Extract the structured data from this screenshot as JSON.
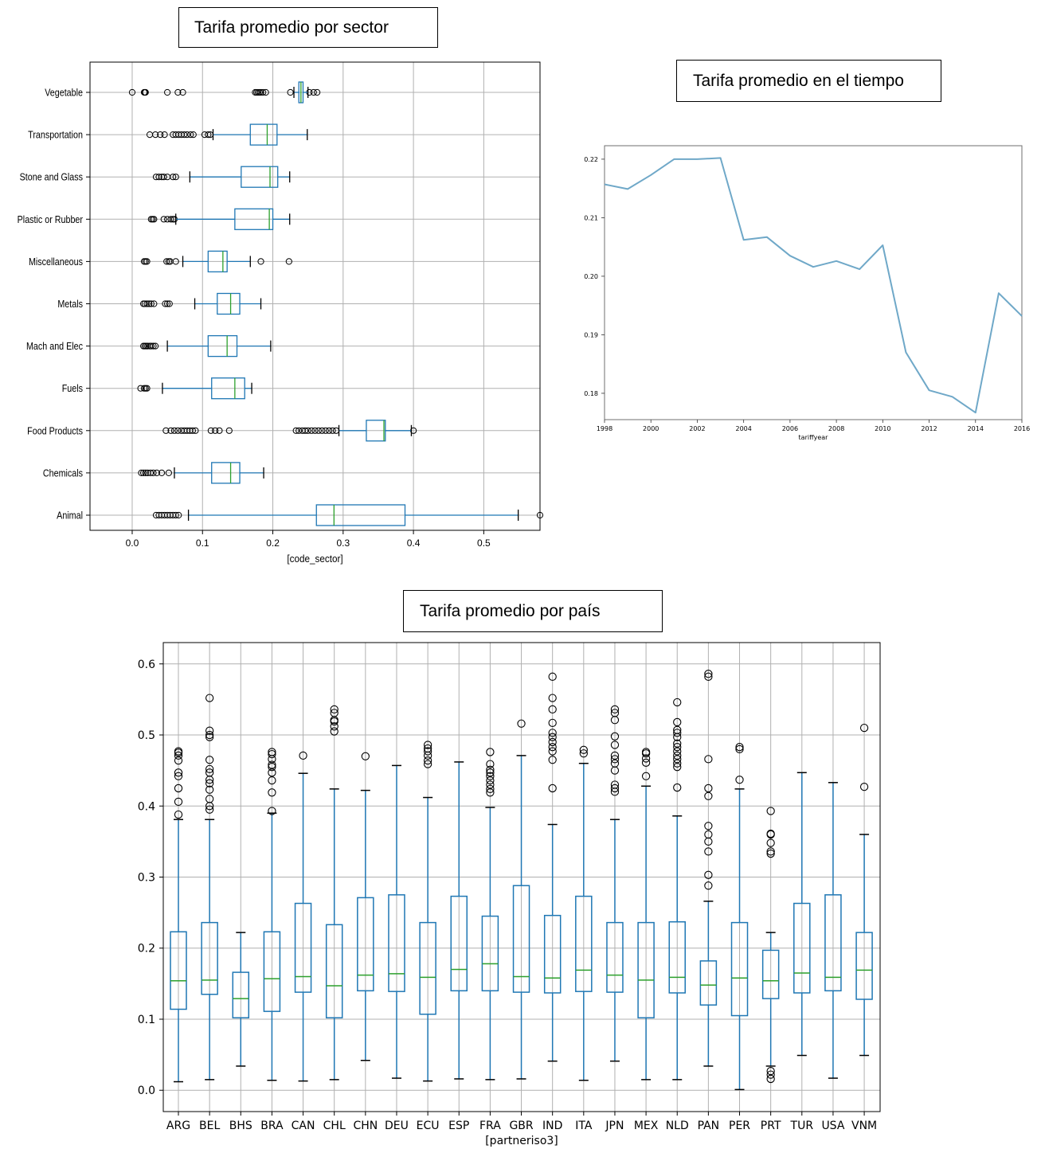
{
  "titles": {
    "sector": "Tarifa promedio por sector",
    "tiempo": "Tarifa promedio en el tiempo",
    "pais": "Tarifa promedio por país"
  },
  "colors": {
    "box": "#1f77b4",
    "median": "#2ca02c",
    "line": "#6fa8c8",
    "grid": "#b0b0b0"
  },
  "chart_data": [
    {
      "type": "box",
      "orientation": "horizontal",
      "title": "Tarifa promedio por sector",
      "xlabel": "[code_sector]",
      "xlim": [
        -0.06,
        0.58
      ],
      "xticks": [
        0.0,
        0.1,
        0.2,
        0.3,
        0.4,
        0.5
      ],
      "xtick_labels": [
        "0.0",
        "0.1",
        "0.2",
        "0.3",
        "0.4",
        "0.5"
      ],
      "grid": true,
      "categories": [
        "Vegetable",
        "Transportation",
        "Stone and Glass",
        "Plastic or Rubber",
        "Miscellaneous",
        "Metals",
        "Mach and Elec",
        "Fuels",
        "Food Products",
        "Chemicals",
        "Animal"
      ],
      "boxes": [
        {
          "name": "Vegetable",
          "whislo": 0.23,
          "q1": 0.237,
          "med": 0.24,
          "q3": 0.243,
          "whishi": 0.25,
          "fliers": [
            0.0,
            0.017,
            0.018,
            0.019,
            0.05,
            0.065,
            0.072,
            0.175,
            0.177,
            0.179,
            0.181,
            0.183,
            0.186,
            0.19,
            0.225,
            0.252,
            0.258,
            0.263
          ]
        },
        {
          "name": "Transportation",
          "whislo": 0.115,
          "q1": 0.168,
          "med": 0.192,
          "q3": 0.206,
          "whishi": 0.249,
          "fliers": [
            0.025,
            0.033,
            0.04,
            0.046,
            0.058,
            0.062,
            0.066,
            0.07,
            0.074,
            0.078,
            0.083,
            0.087,
            0.103,
            0.108,
            0.111
          ]
        },
        {
          "name": "Stone and Glass",
          "whislo": 0.082,
          "q1": 0.155,
          "med": 0.196,
          "q3": 0.207,
          "whishi": 0.224,
          "fliers": [
            0.034,
            0.038,
            0.042,
            0.045,
            0.05,
            0.058,
            0.062
          ]
        },
        {
          "name": "Plastic or Rubber",
          "whislo": 0.062,
          "q1": 0.146,
          "med": 0.195,
          "q3": 0.2,
          "whishi": 0.224,
          "fliers": [
            0.027,
            0.029,
            0.031,
            0.045,
            0.05,
            0.055,
            0.058,
            0.06
          ]
        },
        {
          "name": "Miscellaneous",
          "whislo": 0.072,
          "q1": 0.108,
          "med": 0.129,
          "q3": 0.135,
          "whishi": 0.168,
          "fliers": [
            0.017,
            0.019,
            0.021,
            0.049,
            0.052,
            0.054,
            0.062,
            0.183,
            0.223
          ]
        },
        {
          "name": "Metals",
          "whislo": 0.089,
          "q1": 0.121,
          "med": 0.14,
          "q3": 0.153,
          "whishi": 0.183,
          "fliers": [
            0.016,
            0.018,
            0.021,
            0.024,
            0.027,
            0.031,
            0.047,
            0.05,
            0.053
          ]
        },
        {
          "name": "Mach and Elec",
          "whislo": 0.05,
          "q1": 0.108,
          "med": 0.135,
          "q3": 0.149,
          "whishi": 0.197,
          "fliers": [
            0.016,
            0.018,
            0.02,
            0.022,
            0.025,
            0.027,
            0.03,
            0.033
          ]
        },
        {
          "name": "Fuels",
          "whislo": 0.043,
          "q1": 0.113,
          "med": 0.146,
          "q3": 0.16,
          "whishi": 0.17,
          "fliers": [
            0.012,
            0.017,
            0.019,
            0.021
          ]
        },
        {
          "name": "Food Products",
          "whislo": 0.294,
          "q1": 0.333,
          "med": 0.358,
          "q3": 0.36,
          "whishi": 0.397,
          "fliers": [
            0.048,
            0.055,
            0.06,
            0.065,
            0.07,
            0.074,
            0.078,
            0.082,
            0.086,
            0.09,
            0.112,
            0.118,
            0.124,
            0.138,
            0.233,
            0.237,
            0.242,
            0.246,
            0.25,
            0.255,
            0.26,
            0.265,
            0.27,
            0.275,
            0.28,
            0.285,
            0.29,
            0.4
          ]
        },
        {
          "name": "Chemicals",
          "whislo": 0.06,
          "q1": 0.113,
          "med": 0.14,
          "q3": 0.153,
          "whishi": 0.187,
          "fliers": [
            0.013,
            0.016,
            0.019,
            0.022,
            0.026,
            0.03,
            0.035,
            0.042,
            0.052
          ]
        },
        {
          "name": "Animal",
          "whislo": 0.08,
          "q1": 0.262,
          "med": 0.287,
          "q3": 0.388,
          "whishi": 0.549,
          "fliers": [
            0.034,
            0.038,
            0.042,
            0.046,
            0.05,
            0.054,
            0.058,
            0.062,
            0.066,
            0.58
          ]
        }
      ]
    },
    {
      "type": "line",
      "title": "Tarifa promedio en el tiempo",
      "xlabel": "tariffyear",
      "xlim": [
        1998,
        2016
      ],
      "ylim": [
        0.1755,
        0.2223
      ],
      "xticks": [
        1998,
        2000,
        2002,
        2004,
        2006,
        2008,
        2010,
        2012,
        2014,
        2016
      ],
      "yticks": [
        0.18,
        0.19,
        0.2,
        0.21,
        0.22
      ],
      "ytick_labels": [
        "0.18",
        "0.19",
        "0.20",
        "0.21",
        "0.22"
      ],
      "grid": false,
      "x": [
        1998,
        1999,
        2000,
        2001,
        2002,
        2003,
        2004,
        2005,
        2006,
        2007,
        2008,
        2009,
        2010,
        2011,
        2012,
        2013,
        2014,
        2015,
        2016
      ],
      "y": [
        0.2157,
        0.2149,
        0.2173,
        0.22,
        0.22,
        0.2202,
        0.2062,
        0.2067,
        0.2035,
        0.2016,
        0.2026,
        0.2012,
        0.2053,
        0.187,
        0.1805,
        0.1794,
        0.1767,
        0.1971,
        0.1932
      ]
    },
    {
      "type": "box",
      "orientation": "vertical",
      "title": "Tarifa promedio por país",
      "xlabel": "[partneriso3]",
      "ylim": [
        -0.03,
        0.63
      ],
      "yticks": [
        0.0,
        0.1,
        0.2,
        0.3,
        0.4,
        0.5,
        0.6
      ],
      "ytick_labels": [
        "0.0",
        "0.1",
        "0.2",
        "0.3",
        "0.4",
        "0.5",
        "0.6"
      ],
      "grid": true,
      "categories": [
        "ARG",
        "BEL",
        "BHS",
        "BRA",
        "CAN",
        "CHL",
        "CHN",
        "DEU",
        "ECU",
        "ESP",
        "FRA",
        "GBR",
        "IND",
        "ITA",
        "JPN",
        "MEX",
        "NLD",
        "PAN",
        "PER",
        "PRT",
        "TUR",
        "USA",
        "VNM"
      ],
      "boxes": [
        {
          "name": "ARG",
          "whislo": 0.012,
          "q1": 0.114,
          "med": 0.154,
          "q3": 0.223,
          "whishi": 0.381,
          "fliers": [
            0.388,
            0.406,
            0.425,
            0.442,
            0.447,
            0.464,
            0.471,
            0.475,
            0.477
          ]
        },
        {
          "name": "BEL",
          "whislo": 0.015,
          "q1": 0.135,
          "med": 0.155,
          "q3": 0.236,
          "whishi": 0.381,
          "fliers": [
            0.395,
            0.4,
            0.41,
            0.423,
            0.432,
            0.437,
            0.447,
            0.452,
            0.465,
            0.497,
            0.5,
            0.506,
            0.552
          ]
        },
        {
          "name": "BHS",
          "whislo": 0.034,
          "q1": 0.102,
          "med": 0.129,
          "q3": 0.166,
          "whishi": 0.222,
          "fliers": []
        },
        {
          "name": "BRA",
          "whislo": 0.014,
          "q1": 0.111,
          "med": 0.157,
          "q3": 0.223,
          "whishi": 0.39,
          "fliers": [
            0.393,
            0.419,
            0.436,
            0.447,
            0.455,
            0.458,
            0.466,
            0.473,
            0.476
          ]
        },
        {
          "name": "CAN",
          "whislo": 0.013,
          "q1": 0.138,
          "med": 0.16,
          "q3": 0.263,
          "whishi": 0.446,
          "fliers": [
            0.471
          ]
        },
        {
          "name": "CHL",
          "whislo": 0.015,
          "q1": 0.102,
          "med": 0.147,
          "q3": 0.233,
          "whishi": 0.424,
          "fliers": [
            0.505,
            0.512,
            0.519,
            0.521,
            0.531,
            0.536
          ]
        },
        {
          "name": "CHN",
          "whislo": 0.042,
          "q1": 0.14,
          "med": 0.162,
          "q3": 0.271,
          "whishi": 0.422,
          "fliers": [
            0.47
          ]
        },
        {
          "name": "DEU",
          "whislo": 0.017,
          "q1": 0.139,
          "med": 0.164,
          "q3": 0.275,
          "whishi": 0.457,
          "fliers": []
        },
        {
          "name": "ECU",
          "whislo": 0.013,
          "q1": 0.107,
          "med": 0.159,
          "q3": 0.236,
          "whishi": 0.412,
          "fliers": [
            0.459,
            0.464,
            0.471,
            0.477,
            0.481,
            0.486
          ]
        },
        {
          "name": "ESP",
          "whislo": 0.016,
          "q1": 0.14,
          "med": 0.17,
          "q3": 0.273,
          "whishi": 0.462,
          "fliers": []
        },
        {
          "name": "FRA",
          "whislo": 0.015,
          "q1": 0.14,
          "med": 0.178,
          "q3": 0.245,
          "whishi": 0.398,
          "fliers": [
            0.419,
            0.424,
            0.43,
            0.436,
            0.442,
            0.447,
            0.451,
            0.459,
            0.476
          ]
        },
        {
          "name": "GBR",
          "whislo": 0.016,
          "q1": 0.138,
          "med": 0.16,
          "q3": 0.288,
          "whishi": 0.471,
          "fliers": [
            0.516
          ]
        },
        {
          "name": "IND",
          "whislo": 0.041,
          "q1": 0.137,
          "med": 0.158,
          "q3": 0.246,
          "whishi": 0.374,
          "fliers": [
            0.425,
            0.465,
            0.477,
            0.483,
            0.49,
            0.497,
            0.503,
            0.517,
            0.536,
            0.552,
            0.582
          ]
        },
        {
          "name": "ITA",
          "whislo": 0.014,
          "q1": 0.139,
          "med": 0.169,
          "q3": 0.273,
          "whishi": 0.46,
          "fliers": [
            0.474,
            0.479
          ]
        },
        {
          "name": "JPN",
          "whislo": 0.041,
          "q1": 0.138,
          "med": 0.162,
          "q3": 0.236,
          "whishi": 0.381,
          "fliers": [
            0.42,
            0.425,
            0.43,
            0.45,
            0.46,
            0.466,
            0.471,
            0.486,
            0.498,
            0.521,
            0.531,
            0.536
          ]
        },
        {
          "name": "MEX",
          "whislo": 0.015,
          "q1": 0.102,
          "med": 0.155,
          "q3": 0.236,
          "whishi": 0.428,
          "fliers": [
            0.442,
            0.461,
            0.467,
            0.474,
            0.476
          ]
        },
        {
          "name": "NLD",
          "whislo": 0.015,
          "q1": 0.137,
          "med": 0.159,
          "q3": 0.237,
          "whishi": 0.386,
          "fliers": [
            0.426,
            0.455,
            0.46,
            0.466,
            0.471,
            0.477,
            0.483,
            0.488,
            0.497,
            0.503,
            0.507,
            0.518,
            0.546
          ]
        },
        {
          "name": "PAN",
          "whislo": 0.034,
          "q1": 0.12,
          "med": 0.148,
          "q3": 0.182,
          "whishi": 0.266,
          "fliers": [
            0.288,
            0.303,
            0.336,
            0.35,
            0.36,
            0.372,
            0.414,
            0.425,
            0.466,
            0.582,
            0.586
          ]
        },
        {
          "name": "PER",
          "whislo": 0.001,
          "q1": 0.105,
          "med": 0.158,
          "q3": 0.236,
          "whishi": 0.424,
          "fliers": [
            0.437,
            0.48,
            0.483
          ]
        },
        {
          "name": "PRT",
          "whislo": 0.034,
          "q1": 0.129,
          "med": 0.154,
          "q3": 0.197,
          "whishi": 0.222,
          "fliers": [
            0.016,
            0.022,
            0.027,
            0.333,
            0.336,
            0.348,
            0.36,
            0.361,
            0.393
          ]
        },
        {
          "name": "TUR",
          "whislo": 0.049,
          "q1": 0.137,
          "med": 0.165,
          "q3": 0.263,
          "whishi": 0.447,
          "fliers": []
        },
        {
          "name": "USA",
          "whislo": 0.017,
          "q1": 0.14,
          "med": 0.159,
          "q3": 0.275,
          "whishi": 0.433,
          "fliers": []
        },
        {
          "name": "VNM",
          "whislo": 0.049,
          "q1": 0.128,
          "med": 0.169,
          "q3": 0.222,
          "whishi": 0.36,
          "fliers": [
            0.427,
            0.51
          ]
        }
      ]
    }
  ]
}
